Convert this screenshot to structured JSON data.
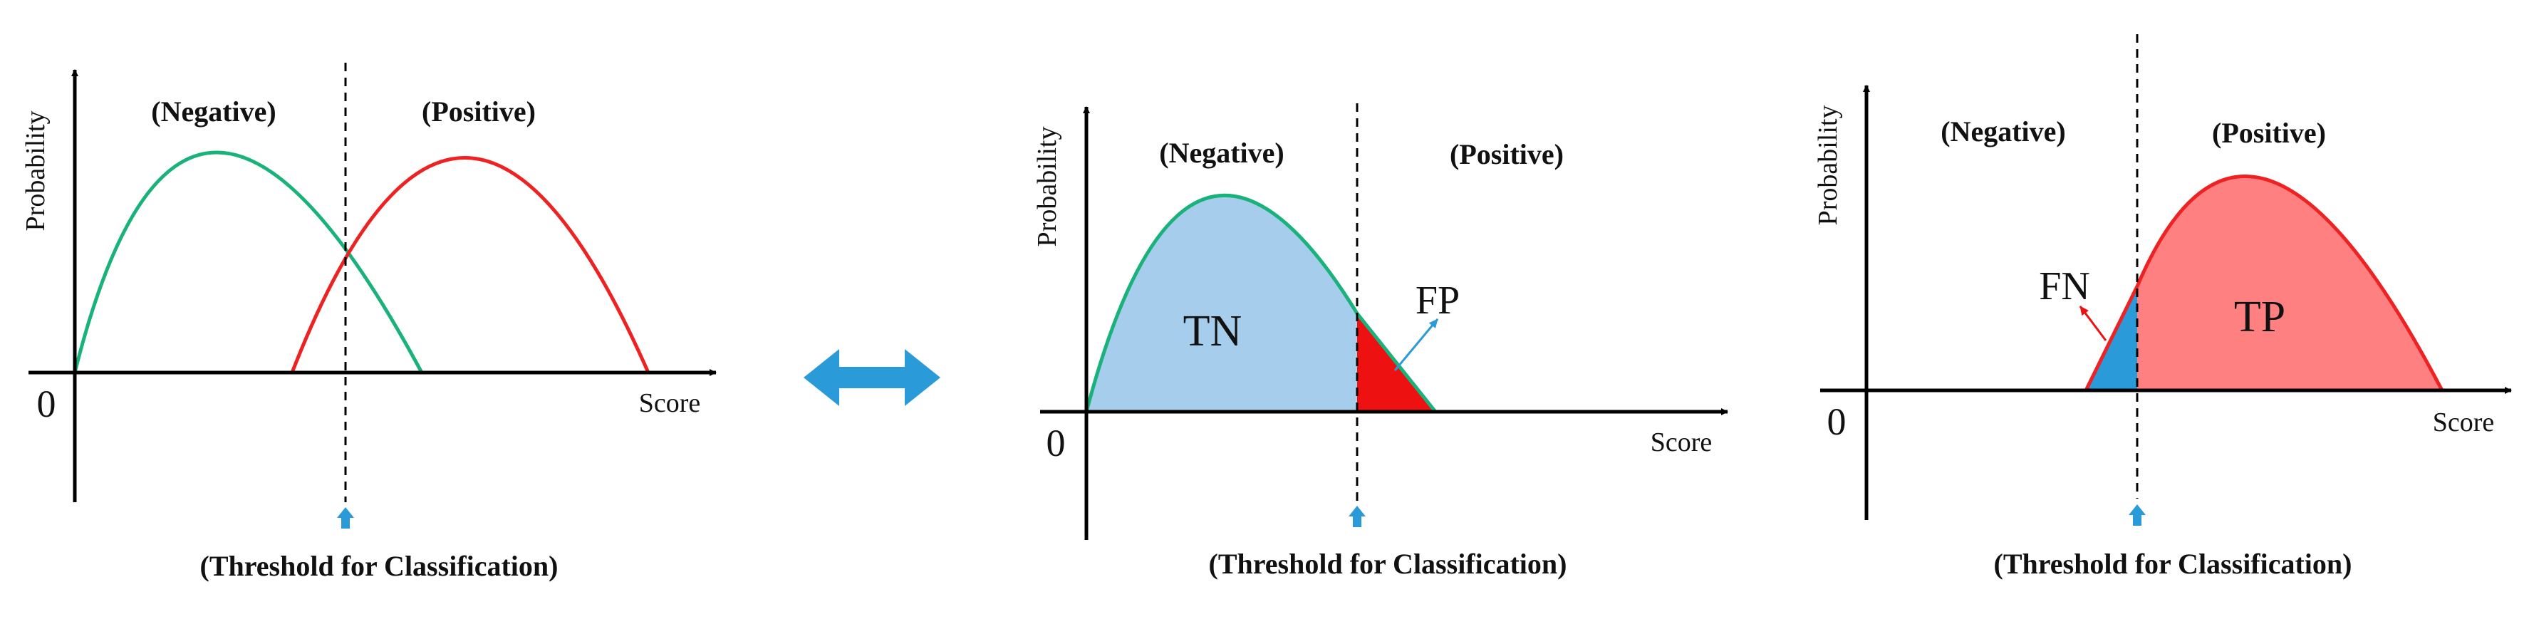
{
  "panels": [
    {
      "id": "overlap",
      "y_axis_label": "Probability",
      "x_axis_label": "Score",
      "origin_label": "0",
      "negative_label": "(Negative)",
      "positive_label": "(Positive)",
      "threshold_label": "(Threshold for Classification)"
    },
    {
      "id": "negative-class",
      "y_axis_label": "Probability",
      "x_axis_label": "Score",
      "origin_label": "0",
      "negative_label": "(Negative)",
      "positive_label": "(Positive)",
      "threshold_label": "(Threshold for Classification)",
      "region_labels": {
        "tn": "TN",
        "fp": "FP"
      }
    },
    {
      "id": "positive-class",
      "y_axis_label": "Probability",
      "x_axis_label": "Score",
      "origin_label": "0",
      "negative_label": "(Negative)",
      "positive_label": "(Positive)",
      "threshold_label": "(Threshold for Classification)",
      "region_labels": {
        "fn": "FN",
        "tp": "TP"
      }
    }
  ],
  "colors": {
    "negative_curve": "#19b27b",
    "positive_curve": "#ee2222",
    "tn_fill": "#a7cdec",
    "fp_fill": "#ee1111",
    "fn_fill": "#2a9bd8",
    "tp_fill": "#ff8080",
    "threshold_marker": "#2a9bd8",
    "double_arrow": "#2a9bd8"
  },
  "icons": {
    "threshold_marker": "up-arrow",
    "between_panels": "double-headed-arrow"
  }
}
